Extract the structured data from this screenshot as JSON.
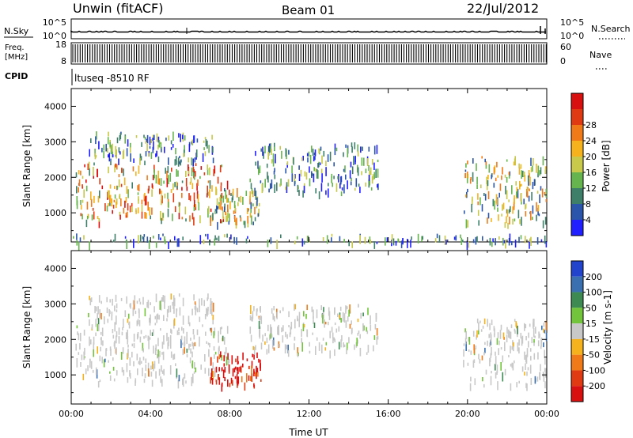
{
  "header": {
    "radar": "Unwin (fitACF)",
    "beam": "Beam 01",
    "date": "22/Jul/2012"
  },
  "top_panels": {
    "nsky_label": "N.Sky",
    "nsky_ticks": [
      "10^5",
      "10^0"
    ],
    "nsearch_label": "N.Search",
    "nsearch_ticks": [
      "10^5",
      "10^0"
    ],
    "freq_label_1": "Freq.",
    "freq_label_2": "[MHz]",
    "freq_ticks": [
      "18",
      "8"
    ],
    "nave_label": "Nave",
    "nave_ticks": [
      "60",
      "0"
    ],
    "cpid_label": "CPID",
    "cpid_text": "ltuseq -8510 RF"
  },
  "chart_data": [
    {
      "type": "heatmap",
      "panel": "power",
      "ylabel": "Slant Range [km]",
      "xlabel": "",
      "xlim": [
        0,
        24
      ],
      "ylim": [
        180,
        4500
      ],
      "yticks": [
        1000,
        2000,
        3000,
        4000
      ],
      "colorbar": {
        "label": "Power [dB]",
        "ticks": [
          4,
          8,
          12,
          16,
          20,
          24,
          28
        ],
        "colors": [
          "#1f1fff",
          "#2a55aa",
          "#3e7f6a",
          "#66b44e",
          "#c8c84a",
          "#f5b21c",
          "#f07a18",
          "#e03a12",
          "#d81010"
        ]
      },
      "regions": [
        {
          "x": [
            0.2,
            8.0
          ],
          "y": [
            800,
            2400
          ],
          "level": "high-mid",
          "note": "dense echoes, strongest 06-08 UT"
        },
        {
          "x": [
            0.8,
            7.2
          ],
          "y": [
            2400,
            3300
          ],
          "level": "low"
        },
        {
          "x": [
            7.0,
            9.6
          ],
          "y": [
            700,
            1700
          ],
          "level": "mid"
        },
        {
          "x": [
            9.0,
            15.5
          ],
          "y": [
            1600,
            3000
          ],
          "level": "low"
        },
        {
          "x": [
            19.8,
            24.0
          ],
          "y": [
            700,
            2600
          ],
          "level": "mid"
        },
        {
          "x": [
            0.0,
            24.0
          ],
          "y": [
            180,
            420
          ],
          "level": "low",
          "note": "near-range ground band"
        }
      ]
    },
    {
      "type": "heatmap",
      "panel": "velocity",
      "ylabel": "Slant Range [km]",
      "xlabel": "Time UT",
      "xlim": [
        0,
        24
      ],
      "ylim": [
        180,
        4500
      ],
      "yticks": [
        1000,
        2000,
        3000,
        4000
      ],
      "xticks": [
        "00:00",
        "04:00",
        "08:00",
        "12:00",
        "16:00",
        "20:00",
        "00:00"
      ],
      "colorbar": {
        "label": "Velocity [m s-1]",
        "ticks": [
          200,
          100,
          50,
          15,
          -15,
          -50,
          -100,
          -200
        ],
        "colors": [
          "#2244cc",
          "#3a6fb0",
          "#3d8a52",
          "#72c43b",
          "#c8c8c8",
          "#f5b21c",
          "#f07a18",
          "#e03a12",
          "#d81010"
        ]
      },
      "regions": [
        {
          "x": [
            0.2,
            8.0
          ],
          "y": [
            800,
            2400
          ],
          "level": "near-zero"
        },
        {
          "x": [
            0.8,
            7.2
          ],
          "y": [
            2400,
            3300
          ],
          "level": "near-zero"
        },
        {
          "x": [
            7.0,
            9.6
          ],
          "y": [
            700,
            1700
          ],
          "level": "strong negative",
          "note": "-100 to -200 m/s"
        },
        {
          "x": [
            9.0,
            15.5
          ],
          "y": [
            1600,
            3000
          ],
          "level": "near-zero"
        },
        {
          "x": [
            19.8,
            24.0
          ],
          "y": [
            700,
            2600
          ],
          "level": "near-zero"
        }
      ]
    }
  ],
  "colors": {
    "axis": "#000000",
    "background": "#ffffff"
  }
}
